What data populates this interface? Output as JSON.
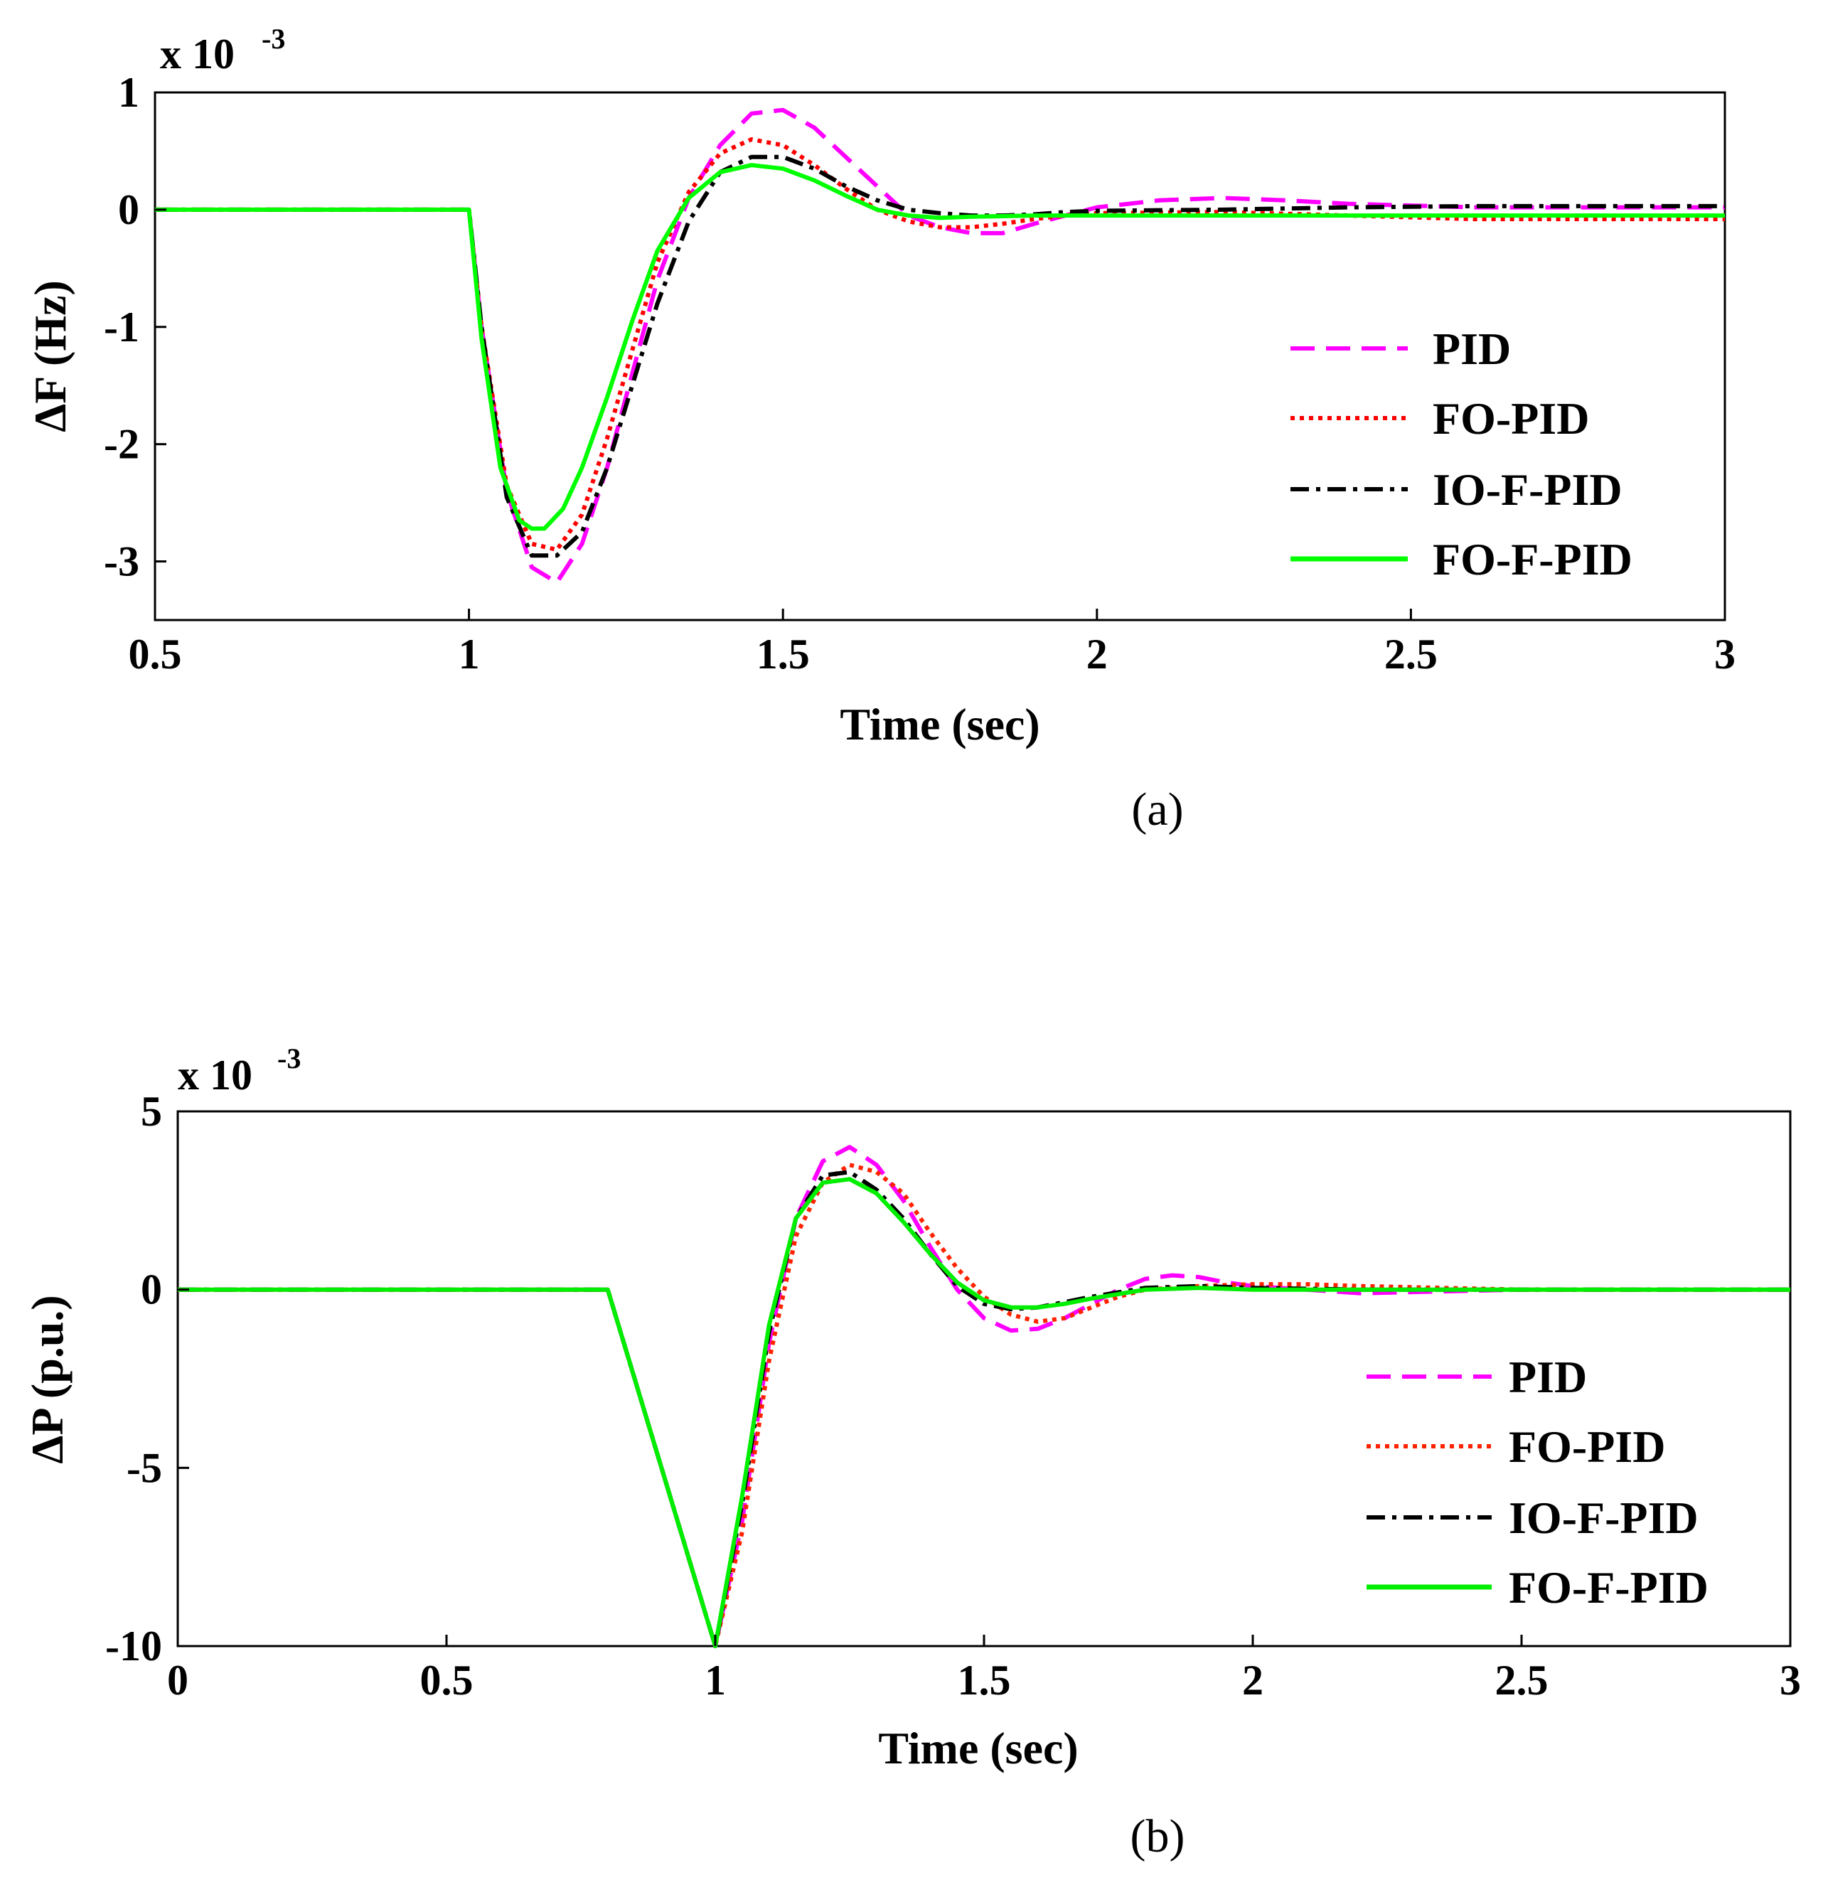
{
  "chart_data": [
    {
      "id": "a",
      "type": "line",
      "caption": "(a)",
      "xlabel": "Time (sec)",
      "ylabel": "ΔF (Hz)",
      "exponent": {
        "base": "x 10",
        "power": "-3"
      },
      "xlim": [
        0.5,
        3
      ],
      "ylim": [
        -3.5,
        1
      ],
      "xticks": [
        0.5,
        1,
        1.5,
        2,
        2.5,
        3
      ],
      "xtick_labels": [
        "0.5",
        "1",
        "1.5",
        "2",
        "2.5",
        "3"
      ],
      "yticks": [
        -3,
        -2,
        -1,
        0,
        1
      ],
      "ytick_labels": [
        "-3",
        "-2",
        "-1",
        "0",
        "1"
      ],
      "legend_position": "right",
      "series": [
        {
          "name": "PID",
          "color": "#ff00ff",
          "dash": "dashed",
          "x": [
            0.5,
            1.0,
            1.02,
            1.06,
            1.1,
            1.14,
            1.18,
            1.22,
            1.26,
            1.3,
            1.35,
            1.4,
            1.45,
            1.5,
            1.55,
            1.6,
            1.65,
            1.7,
            1.75,
            1.8,
            1.85,
            1.9,
            1.95,
            2.0,
            2.1,
            2.2,
            2.3,
            2.4,
            2.6,
            3.0
          ],
          "y": [
            0,
            0,
            -1.0,
            -2.4,
            -3.05,
            -3.18,
            -2.85,
            -2.2,
            -1.4,
            -0.6,
            0.1,
            0.55,
            0.82,
            0.85,
            0.7,
            0.45,
            0.2,
            -0.05,
            -0.15,
            -0.2,
            -0.2,
            -0.12,
            -0.05,
            0.02,
            0.08,
            0.1,
            0.08,
            0.05,
            0.02,
            0.02
          ]
        },
        {
          "name": "FO-PID",
          "color": "#ff0000",
          "dash": "dotted",
          "x": [
            0.5,
            1.0,
            1.02,
            1.06,
            1.1,
            1.14,
            1.18,
            1.22,
            1.26,
            1.3,
            1.35,
            1.4,
            1.45,
            1.5,
            1.55,
            1.6,
            1.65,
            1.7,
            1.75,
            1.8,
            1.85,
            1.9,
            1.95,
            2.0,
            2.2,
            2.4,
            2.6,
            3.0
          ],
          "y": [
            0,
            0,
            -1.0,
            -2.35,
            -2.85,
            -2.9,
            -2.6,
            -1.95,
            -1.2,
            -0.45,
            0.15,
            0.48,
            0.6,
            0.55,
            0.38,
            0.18,
            0.0,
            -0.1,
            -0.15,
            -0.15,
            -0.12,
            -0.08,
            -0.05,
            -0.03,
            -0.02,
            -0.05,
            -0.08,
            -0.08
          ]
        },
        {
          "name": "IO-F-PID",
          "color": "#000000",
          "dash": "dashdot",
          "x": [
            0.5,
            1.0,
            1.02,
            1.06,
            1.1,
            1.14,
            1.18,
            1.22,
            1.26,
            1.3,
            1.35,
            1.4,
            1.45,
            1.5,
            1.55,
            1.6,
            1.65,
            1.7,
            1.75,
            1.8,
            1.85,
            1.9,
            1.95,
            2.0,
            2.2,
            2.4,
            2.6,
            3.0
          ],
          "y": [
            0,
            0,
            -1.0,
            -2.45,
            -2.95,
            -2.95,
            -2.75,
            -2.2,
            -1.5,
            -0.8,
            -0.1,
            0.32,
            0.45,
            0.45,
            0.35,
            0.2,
            0.08,
            0.0,
            -0.03,
            -0.05,
            -0.05,
            -0.04,
            -0.02,
            -0.01,
            0.0,
            0.02,
            0.03,
            0.03
          ]
        },
        {
          "name": "FO-F-PID",
          "color": "#00ff00",
          "dash": "solid",
          "x": [
            0.5,
            1.0,
            1.02,
            1.05,
            1.08,
            1.1,
            1.12,
            1.15,
            1.18,
            1.22,
            1.26,
            1.3,
            1.35,
            1.4,
            1.45,
            1.5,
            1.55,
            1.6,
            1.65,
            1.7,
            1.75,
            1.8,
            1.9,
            2.0,
            2.2,
            2.5,
            3.0
          ],
          "y": [
            0,
            0,
            -1.1,
            -2.2,
            -2.65,
            -2.72,
            -2.72,
            -2.55,
            -2.2,
            -1.6,
            -0.95,
            -0.35,
            0.1,
            0.32,
            0.38,
            0.35,
            0.25,
            0.12,
            0.0,
            -0.05,
            -0.07,
            -0.06,
            -0.05,
            -0.05,
            -0.05,
            -0.05,
            -0.05
          ]
        }
      ]
    },
    {
      "id": "b",
      "type": "line",
      "caption": "(b)",
      "xlabel": "Time (sec)",
      "ylabel": "ΔP (p.u.)",
      "exponent": {
        "base": "x 10",
        "power": "-3"
      },
      "xlim": [
        0,
        3
      ],
      "ylim": [
        -10,
        5
      ],
      "xticks": [
        0,
        0.5,
        1,
        1.5,
        2,
        2.5,
        3
      ],
      "xtick_labels": [
        "0",
        "0.5",
        "1",
        "1.5",
        "2",
        "2.5",
        "3"
      ],
      "yticks": [
        -10,
        -5,
        0,
        5
      ],
      "ytick_labels": [
        "-10",
        "-5",
        "0",
        "5"
      ],
      "legend_position": "right",
      "series": [
        {
          "name": "PID",
          "color": "#ff00ff",
          "dash": "dashed",
          "x": [
            0,
            0.8,
            1.0,
            1.05,
            1.1,
            1.15,
            1.2,
            1.25,
            1.3,
            1.35,
            1.4,
            1.45,
            1.5,
            1.55,
            1.6,
            1.65,
            1.7,
            1.75,
            1.8,
            1.85,
            1.9,
            1.95,
            2.0,
            2.1,
            2.2,
            2.5,
            3.0
          ],
          "y": [
            0,
            0,
            -10,
            -6.5,
            -1.5,
            2.0,
            3.6,
            4.0,
            3.5,
            2.5,
            1.2,
            0.0,
            -0.8,
            -1.15,
            -1.1,
            -0.8,
            -0.4,
            0.0,
            0.3,
            0.4,
            0.35,
            0.2,
            0.1,
            0.0,
            -0.1,
            0.0,
            0.0
          ]
        },
        {
          "name": "FO-PID",
          "color": "#ff2200",
          "dash": "dotted",
          "x": [
            0,
            0.8,
            1.0,
            1.05,
            1.1,
            1.15,
            1.2,
            1.25,
            1.3,
            1.35,
            1.4,
            1.45,
            1.5,
            1.55,
            1.6,
            1.65,
            1.7,
            1.75,
            1.8,
            1.9,
            2.0,
            2.1,
            2.2,
            2.5,
            3.0
          ],
          "y": [
            0,
            0,
            -10,
            -6.8,
            -2.0,
            1.5,
            3.0,
            3.5,
            3.3,
            2.7,
            1.6,
            0.6,
            -0.2,
            -0.7,
            -0.9,
            -0.8,
            -0.5,
            -0.2,
            0.0,
            0.1,
            0.15,
            0.15,
            0.1,
            0.0,
            0.0
          ]
        },
        {
          "name": "IO-F-PID",
          "color": "#000000",
          "dash": "dashdot",
          "x": [
            0,
            0.8,
            1.0,
            1.05,
            1.1,
            1.15,
            1.2,
            1.25,
            1.3,
            1.35,
            1.4,
            1.45,
            1.5,
            1.55,
            1.6,
            1.65,
            1.7,
            1.8,
            1.9,
            2.0,
            2.2,
            2.5,
            3.0
          ],
          "y": [
            0,
            0,
            -10,
            -6.0,
            -1.2,
            2.0,
            3.2,
            3.3,
            2.8,
            2.0,
            1.0,
            0.1,
            -0.4,
            -0.55,
            -0.5,
            -0.35,
            -0.2,
            0.05,
            0.1,
            0.05,
            0.0,
            0.0,
            0.0
          ]
        },
        {
          "name": "FO-F-PID",
          "color": "#00ee00",
          "dash": "solid",
          "x": [
            0,
            0.8,
            1.0,
            1.05,
            1.1,
            1.15,
            1.2,
            1.25,
            1.3,
            1.35,
            1.4,
            1.45,
            1.5,
            1.55,
            1.6,
            1.65,
            1.7,
            1.8,
            1.9,
            2.0,
            2.2,
            2.5,
            3.0
          ],
          "y": [
            0,
            0,
            -10,
            -5.8,
            -1.0,
            2.0,
            3.0,
            3.1,
            2.7,
            1.9,
            1.0,
            0.2,
            -0.3,
            -0.5,
            -0.5,
            -0.4,
            -0.25,
            0.0,
            0.05,
            0.0,
            0.0,
            0.0,
            0.0
          ]
        }
      ]
    }
  ]
}
